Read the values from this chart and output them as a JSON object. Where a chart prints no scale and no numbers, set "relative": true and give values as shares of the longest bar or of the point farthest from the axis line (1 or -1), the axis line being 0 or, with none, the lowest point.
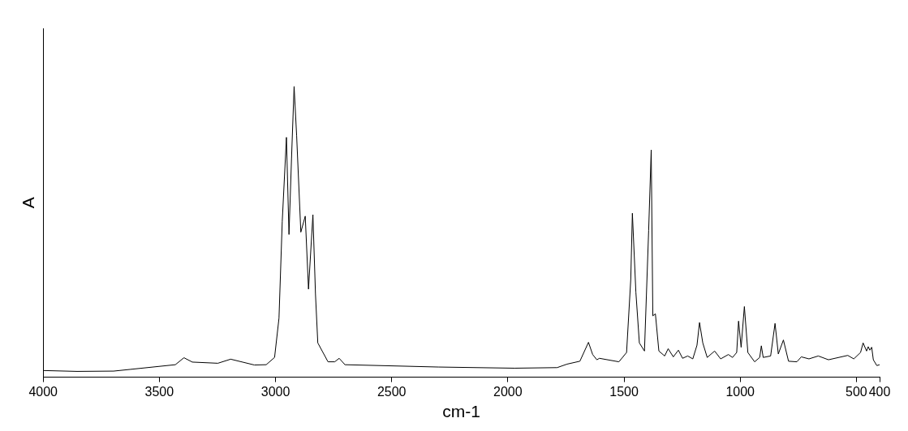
{
  "chart_data": {
    "type": "line",
    "xlabel": "cm-1",
    "ylabel": "A",
    "relative": true,
    "xlim": [
      4000,
      400
    ],
    "xticks": [
      4000,
      3500,
      3000,
      2500,
      2000,
      1500,
      1000,
      500,
      400
    ],
    "grid": false,
    "legend": false,
    "marker": "none",
    "line_style": "solid",
    "series": [
      {
        "color": "#000000",
        "x": [
          4000,
          3854,
          3697,
          3624,
          3431,
          3394,
          3358,
          3248,
          3193,
          3091,
          3040,
          3004,
          2985,
          2971,
          2953,
          2942,
          2931,
          2920,
          2909,
          2891,
          2872,
          2858,
          2839,
          2828,
          2818,
          2774,
          2745,
          2726,
          2701,
          2299,
          1971,
          1788,
          1745,
          1690,
          1653,
          1635,
          1617,
          1606,
          1522,
          1489,
          1471,
          1464,
          1449,
          1434,
          1412,
          1394,
          1383,
          1376,
          1365,
          1350,
          1325,
          1310,
          1288,
          1266,
          1248,
          1226,
          1204,
          1186,
          1175,
          1161,
          1142,
          1110,
          1084,
          1051,
          1033,
          1015,
          1007,
          996,
          982,
          967,
          938,
          916,
          909,
          901,
          869,
          850,
          836,
          814,
          792,
          756,
          737,
          704,
          664,
          620,
          537,
          511,
          482,
          471,
          456,
          449,
          442,
          434,
          427,
          412,
          400
        ],
        "values": [
          0.023,
          0.02,
          0.021,
          0.027,
          0.043,
          0.067,
          0.052,
          0.048,
          0.062,
          0.042,
          0.043,
          0.068,
          0.203,
          0.536,
          0.825,
          0.491,
          0.754,
          1,
          0.83,
          0.499,
          0.554,
          0.303,
          0.559,
          0.286,
          0.118,
          0.053,
          0.053,
          0.065,
          0.043,
          0.035,
          0.031,
          0.033,
          0.045,
          0.055,
          0.12,
          0.078,
          0.06,
          0.065,
          0.053,
          0.085,
          0.336,
          0.564,
          0.293,
          0.118,
          0.09,
          0.504,
          0.782,
          0.211,
          0.218,
          0.09,
          0.073,
          0.098,
          0.07,
          0.093,
          0.065,
          0.073,
          0.063,
          0.11,
          0.188,
          0.118,
          0.068,
          0.09,
          0.063,
          0.078,
          0.068,
          0.085,
          0.193,
          0.103,
          0.243,
          0.085,
          0.053,
          0.068,
          0.108,
          0.068,
          0.073,
          0.185,
          0.08,
          0.128,
          0.055,
          0.053,
          0.07,
          0.063,
          0.073,
          0.06,
          0.075,
          0.063,
          0.085,
          0.118,
          0.09,
          0.105,
          0.093,
          0.103,
          0.06,
          0.04,
          0.043
        ]
      }
    ]
  }
}
